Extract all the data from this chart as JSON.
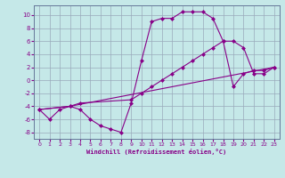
{
  "xlabel": "Windchill (Refroidissement éolien,°C)",
  "bg_color": "#c5e8e8",
  "grid_color": "#99aabb",
  "line_color": "#880088",
  "xlim": [
    -0.5,
    23.5
  ],
  "ylim": [
    -9.0,
    11.5
  ],
  "xticks": [
    0,
    1,
    2,
    3,
    4,
    5,
    6,
    7,
    8,
    9,
    10,
    11,
    12,
    13,
    14,
    15,
    16,
    17,
    18,
    19,
    20,
    21,
    22,
    23
  ],
  "yticks": [
    -8,
    -6,
    -4,
    -2,
    0,
    2,
    4,
    6,
    8,
    10
  ],
  "line1_x": [
    0,
    1,
    2,
    3,
    4,
    5,
    6,
    7,
    8,
    9,
    10,
    11,
    12,
    13,
    14,
    15,
    16,
    17,
    18,
    19,
    20,
    21,
    22,
    23
  ],
  "line1_y": [
    -4.5,
    -6.0,
    -4.5,
    -4.0,
    -4.5,
    -6.0,
    -7.0,
    -7.5,
    -8.0,
    -3.5,
    3.0,
    9.0,
    9.5,
    9.5,
    10.5,
    10.5,
    10.5,
    9.5,
    6.0,
    -1.0,
    1.0,
    1.5,
    1.5,
    2.0
  ],
  "line2_x": [
    0,
    3,
    4,
    9,
    10,
    11,
    12,
    13,
    14,
    15,
    16,
    17,
    18,
    19,
    20,
    21,
    22,
    23
  ],
  "line2_y": [
    -4.5,
    -4.0,
    -3.5,
    -3.0,
    -2.0,
    -1.0,
    0.0,
    1.0,
    2.0,
    3.0,
    4.0,
    5.0,
    6.0,
    6.0,
    5.0,
    1.0,
    1.0,
    2.0
  ],
  "line3_x": [
    0,
    3,
    23
  ],
  "line3_y": [
    -4.5,
    -4.0,
    2.0
  ]
}
